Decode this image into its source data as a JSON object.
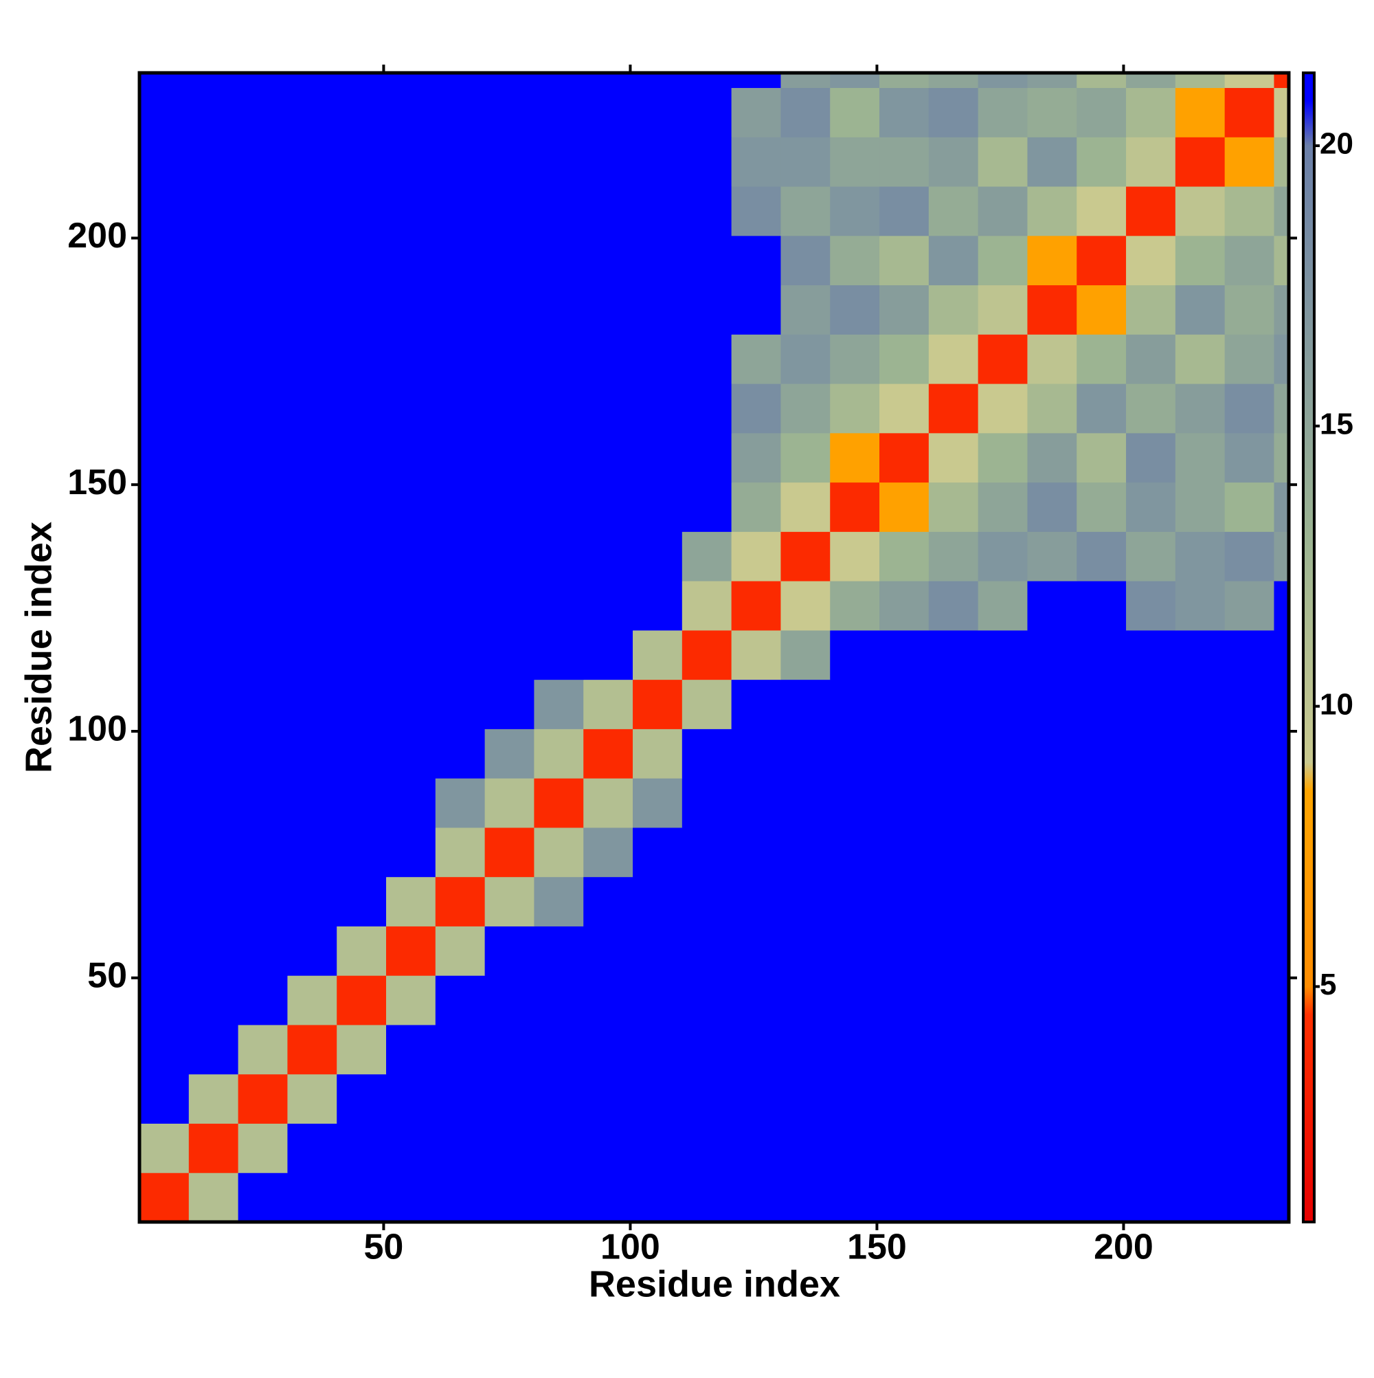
{
  "chart_data": {
    "type": "heatmap",
    "x_label": "Residue index",
    "y_label": "Residue index",
    "x_bins": [
      0.5,
      10.5,
      20.5,
      30.5,
      40.5,
      50.5,
      60.5,
      70.5,
      80.5,
      90.5,
      100.5,
      110.5,
      120.5,
      130.5,
      140.5,
      150.5,
      160.5,
      170.5,
      180.5,
      190.5,
      200.5,
      210.5,
      220.5,
      230.5,
      233.5
    ],
    "y_bins": [
      0.5,
      10.5,
      20.5,
      30.5,
      40.5,
      50.5,
      60.5,
      70.5,
      80.5,
      90.5,
      100.5,
      110.5,
      120.5,
      130.5,
      140.5,
      150.5,
      160.5,
      170.5,
      180.5,
      190.5,
      200.5,
      210.5,
      220.5,
      230.5,
      233.5
    ],
    "xlim": [
      0.5,
      233.5
    ],
    "ylim": [
      0.5,
      233.5
    ],
    "xticks": [
      50,
      100,
      150,
      200
    ],
    "yticks": [
      50,
      100,
      150,
      200
    ],
    "clim": [
      0.8,
      21.3
    ],
    "cticks": [
      5,
      10,
      15,
      20
    ],
    "colorscale": [
      [
        0.8,
        "#e60000"
      ],
      [
        4.5,
        "#ff3000"
      ],
      [
        5,
        "#ff8c00"
      ],
      [
        8.5,
        "#ffa500"
      ],
      [
        9,
        "#c9c98f"
      ],
      [
        13,
        "#9cb492"
      ],
      [
        20,
        "#6b7fa8"
      ],
      [
        20.8,
        "#0000ff"
      ],
      [
        21.3,
        "#0000ff"
      ]
    ],
    "z": [
      [
        4,
        11,
        21,
        21,
        21,
        21,
        21,
        21,
        21,
        21,
        21,
        21,
        21,
        21,
        21,
        21,
        21,
        21,
        21,
        21,
        21,
        21,
        21,
        21
      ],
      [
        11,
        4,
        11,
        21,
        21,
        21,
        21,
        21,
        21,
        21,
        21,
        21,
        21,
        21,
        21,
        21,
        21,
        21,
        21,
        21,
        21,
        21,
        21,
        21
      ],
      [
        21,
        11,
        4,
        11,
        21,
        21,
        21,
        21,
        21,
        21,
        21,
        21,
        21,
        21,
        21,
        21,
        21,
        21,
        21,
        21,
        21,
        21,
        21,
        21
      ],
      [
        21,
        21,
        11,
        4,
        11,
        21,
        21,
        21,
        21,
        21,
        21,
        21,
        21,
        21,
        21,
        21,
        21,
        21,
        21,
        21,
        21,
        21,
        21,
        21
      ],
      [
        21,
        21,
        21,
        11,
        4,
        11,
        21,
        21,
        21,
        21,
        21,
        21,
        21,
        21,
        21,
        21,
        21,
        21,
        21,
        21,
        21,
        21,
        21,
        21
      ],
      [
        21,
        21,
        21,
        21,
        11,
        4,
        11,
        21,
        21,
        21,
        21,
        21,
        21,
        21,
        21,
        21,
        21,
        21,
        21,
        21,
        21,
        21,
        21,
        21
      ],
      [
        21,
        21,
        21,
        21,
        21,
        11,
        4,
        11,
        17,
        21,
        21,
        21,
        21,
        21,
        21,
        21,
        21,
        21,
        21,
        21,
        21,
        21,
        21,
        21
      ],
      [
        21,
        21,
        21,
        21,
        21,
        21,
        11,
        4,
        11,
        17,
        21,
        21,
        21,
        21,
        21,
        21,
        21,
        21,
        21,
        21,
        21,
        21,
        21,
        21
      ],
      [
        21,
        21,
        21,
        21,
        21,
        21,
        17,
        11,
        4,
        11,
        17,
        21,
        21,
        21,
        21,
        21,
        21,
        21,
        21,
        21,
        21,
        21,
        21,
        21
      ],
      [
        21,
        21,
        21,
        21,
        21,
        21,
        21,
        17,
        11,
        4,
        11,
        21,
        21,
        21,
        21,
        21,
        21,
        21,
        21,
        21,
        21,
        21,
        21,
        21
      ],
      [
        21,
        21,
        21,
        21,
        21,
        21,
        21,
        21,
        17,
        11,
        4,
        11,
        21,
        21,
        21,
        21,
        21,
        21,
        21,
        21,
        21,
        21,
        21,
        21
      ],
      [
        21,
        21,
        21,
        21,
        21,
        21,
        21,
        21,
        21,
        21,
        11,
        4,
        10,
        15,
        21,
        21,
        21,
        21,
        21,
        21,
        21,
        21,
        21,
        21
      ],
      [
        21,
        21,
        21,
        21,
        21,
        21,
        21,
        21,
        21,
        21,
        21,
        10,
        4,
        9,
        14,
        16,
        18,
        15,
        21,
        21,
        18,
        17,
        16,
        21
      ],
      [
        21,
        21,
        21,
        21,
        21,
        21,
        21,
        21,
        21,
        21,
        21,
        15,
        9,
        4,
        9,
        13,
        15,
        17,
        16,
        18,
        15,
        17,
        18,
        16
      ],
      [
        21,
        21,
        21,
        21,
        21,
        21,
        21,
        21,
        21,
        21,
        21,
        21,
        14,
        9,
        4,
        8,
        12,
        15,
        18,
        14,
        17,
        15,
        13,
        17
      ],
      [
        21,
        21,
        21,
        21,
        21,
        21,
        21,
        21,
        21,
        21,
        21,
        21,
        16,
        13,
        8,
        4,
        9,
        13,
        16,
        12,
        18,
        15,
        17,
        14
      ],
      [
        21,
        21,
        21,
        21,
        21,
        21,
        21,
        21,
        21,
        21,
        21,
        21,
        18,
        15,
        12,
        9,
        4,
        9,
        12,
        17,
        14,
        16,
        18,
        15
      ],
      [
        21,
        21,
        21,
        21,
        21,
        21,
        21,
        21,
        21,
        21,
        21,
        21,
        15,
        17,
        15,
        13,
        9,
        4,
        10,
        13,
        16,
        12,
        15,
        17
      ],
      [
        21,
        21,
        21,
        21,
        21,
        21,
        21,
        21,
        21,
        21,
        21,
        21,
        21,
        16,
        18,
        16,
        12,
        10,
        4,
        8,
        12,
        17,
        14,
        16
      ],
      [
        21,
        21,
        21,
        21,
        21,
        21,
        21,
        21,
        21,
        21,
        21,
        21,
        21,
        18,
        14,
        12,
        17,
        13,
        8,
        4,
        9,
        13,
        15,
        12
      ],
      [
        21,
        21,
        21,
        21,
        21,
        21,
        21,
        21,
        21,
        21,
        21,
        21,
        18,
        15,
        17,
        18,
        14,
        16,
        12,
        9,
        4,
        10,
        12,
        15
      ],
      [
        21,
        21,
        21,
        21,
        21,
        21,
        21,
        21,
        21,
        21,
        21,
        21,
        17,
        17,
        15,
        15,
        16,
        12,
        17,
        13,
        10,
        4,
        8,
        12
      ],
      [
        21,
        21,
        21,
        21,
        21,
        21,
        21,
        21,
        21,
        21,
        21,
        21,
        16,
        18,
        13,
        17,
        18,
        15,
        14,
        15,
        12,
        8,
        4,
        9
      ],
      [
        21,
        21,
        21,
        21,
        21,
        21,
        21,
        21,
        21,
        21,
        21,
        21,
        21,
        16,
        17,
        14,
        15,
        17,
        16,
        12,
        15,
        12,
        9,
        4
      ]
    ]
  }
}
